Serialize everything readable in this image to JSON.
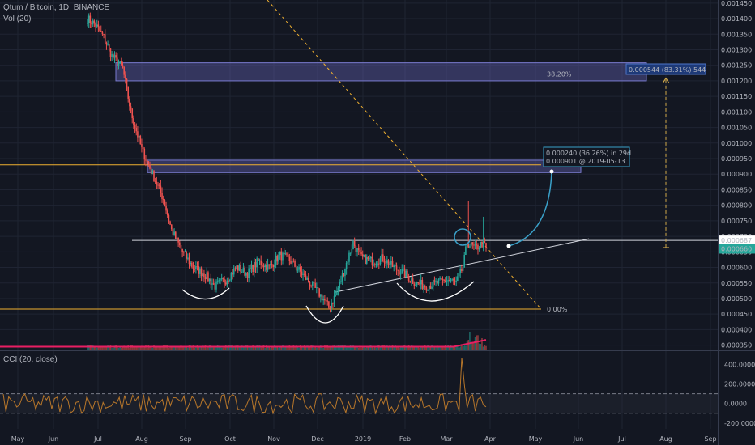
{
  "header": {
    "symbol": "Qtum / Bitcoin, 1D, BINANCE",
    "volume": "Vol (20)",
    "cci": "CCI (20, close)"
  },
  "chart_data": {
    "type": "candlestick",
    "price_axis": {
      "range": [
        0.000336,
        0.00146
      ],
      "ticks": [
        "0.001450",
        "0.001400",
        "0.001350",
        "0.001300",
        "0.001250",
        "0.001200",
        "0.001150",
        "0.001100",
        "0.001050",
        "0.001000",
        "0.000950",
        "0.000900",
        "0.000850",
        "0.000800",
        "0.000750",
        "0.000700",
        "0.000650",
        "0.000600",
        "0.000550",
        "0.000500",
        "0.000450",
        "0.000400",
        "0.000350"
      ]
    },
    "cci_axis": {
      "range": [
        -260,
        520
      ],
      "ticks": [
        "400.0000",
        "200.0000",
        "0.0000",
        "-200.0000"
      ],
      "bands": [
        100,
        -100
      ]
    },
    "months": [
      "May",
      "Jun",
      "Jul",
      "Aug",
      "Sep",
      "Oct",
      "Nov",
      "Dec",
      "2019",
      "Feb",
      "Mar",
      "Apr",
      "May",
      "Jun",
      "Jul",
      "Aug",
      "Sep"
    ],
    "price_badges": [
      "0.000687",
      "0.000660"
    ],
    "fib_levels": [
      {
        "level": "38.20%",
        "price": 0.001222
      },
      {
        "level": "0.00%",
        "price": 0.000466
      }
    ],
    "annotations": {
      "projection_small": "0.000240 (36.26%) in 29d",
      "projection_small_sub": "0.000901 @ 2019-05-13",
      "projection_large": "0.000544 (83.31%) 544"
    },
    "colors": {
      "up": "#26a69a",
      "down": "#ef5350",
      "fib": "#f0b030",
      "zone": "#5d5ea8",
      "projection": "#3aa0c8",
      "volume_ma": "#e91e63",
      "cci": "#b8772a"
    }
  }
}
